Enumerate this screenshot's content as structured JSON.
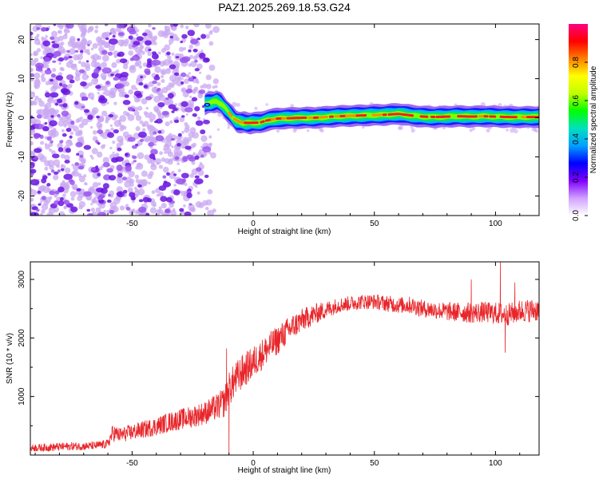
{
  "page_title": "PAZ1.2025.269.18.53.G24",
  "colors": {
    "snr_line": "#e8262a",
    "spectro_background_dot": "#c9a8f2",
    "spectro_strong_dot": "#6a14e0",
    "axis": "#000000"
  },
  "chart_data": [
    {
      "type": "heatmap",
      "title": "PAZ1.2025.269.18.53.G24",
      "xlabel": "Height of straight line (km)",
      "ylabel": "Frequency (Hz)",
      "xlim": [
        -92,
        118
      ],
      "ylim": [
        -25,
        24
      ],
      "xticks": [
        -50,
        0,
        50,
        100
      ],
      "yticks": [
        -20,
        -10,
        0,
        10,
        20
      ],
      "xtick_labels": [
        "-50",
        "0",
        "50",
        "100"
      ],
      "ytick_labels": [
        "-20",
        "-10",
        "0",
        "10",
        "20"
      ],
      "colorbar": {
        "label": "Normalized spectral amplitude",
        "range": [
          0,
          1
        ],
        "ticks": [
          "0.0",
          "0.2",
          "0.4",
          "0.6",
          "0.8"
        ],
        "colormap": [
          "#ffffff",
          "#d0a0ff",
          "#8000ff",
          "#0000ff",
          "#00a0ff",
          "#00e0c0",
          "#00ff00",
          "#c0ff00",
          "#ffff00",
          "#ff8000",
          "#ff0000",
          "#ff0080"
        ]
      },
      "noise_region_x": [
        -92,
        -15
      ],
      "ridge": {
        "x": [
          -20,
          -17,
          -15,
          -13,
          -11,
          -9,
          -7,
          -5,
          -3,
          0,
          3,
          6,
          10,
          15,
          20,
          25,
          30,
          35,
          40,
          45,
          50,
          55,
          60,
          65,
          70,
          75,
          80,
          85,
          90,
          95,
          100,
          105,
          110,
          118
        ],
        "y": [
          3.5,
          4,
          4.2,
          3.5,
          2,
          0.5,
          -0.8,
          -1.2,
          -1.3,
          -1.3,
          -1.2,
          -0.6,
          -0.2,
          -0.1,
          0,
          0,
          0.2,
          0.4,
          0.5,
          0.6,
          0.7,
          0.8,
          1.0,
          0.6,
          0.3,
          0.2,
          0.3,
          0.4,
          0.3,
          0.4,
          0.3,
          0.2,
          0.2,
          0.2
        ]
      }
    },
    {
      "type": "line",
      "xlabel": "Height of straight line (km)",
      "ylabel": "SNR (10 * v/v)",
      "xlim": [
        -92,
        118
      ],
      "ylim": [
        0,
        3300
      ],
      "xticks": [
        -50,
        0,
        50,
        100
      ],
      "yticks": [
        1000,
        2000,
        3000
      ],
      "xtick_labels": [
        "-50",
        "0",
        "50",
        "100"
      ],
      "ytick_labels": [
        "1000",
        "2000",
        "3000"
      ],
      "series": [
        {
          "x": [
            -92,
            -85,
            -80,
            -75,
            -70,
            -65,
            -60,
            -58,
            -55,
            -50,
            -45,
            -40,
            -35,
            -30,
            -25,
            -20,
            -15,
            -12,
            -10,
            -8,
            -5,
            0,
            5,
            10,
            15,
            20,
            25,
            30,
            35,
            40,
            45,
            50,
            55,
            60,
            65,
            70,
            75,
            80,
            85,
            90,
            95,
            100,
            105,
            110,
            118
          ],
          "values": [
            120,
            130,
            140,
            150,
            150,
            160,
            190,
            380,
            340,
            390,
            440,
            490,
            560,
            610,
            660,
            720,
            820,
            900,
            1120,
            1250,
            1400,
            1580,
            1780,
            1960,
            2150,
            2300,
            2400,
            2480,
            2560,
            2590,
            2620,
            2620,
            2590,
            2560,
            2560,
            2500,
            2480,
            2450,
            2440,
            2430,
            2440,
            2420,
            2400,
            2460,
            2480
          ],
          "noise_amplitude": [
            60,
            70,
            70,
            70,
            70,
            70,
            80,
            150,
            130,
            140,
            150,
            160,
            170,
            180,
            190,
            200,
            230,
            260,
            300,
            300,
            300,
            280,
            260,
            250,
            230,
            200,
            180,
            150,
            130,
            130,
            130,
            130,
            140,
            140,
            150,
            150,
            150,
            160,
            170,
            180,
            180,
            190,
            190,
            200,
            200
          ],
          "spikes": [
            [
              -11,
              1820
            ],
            [
              -10,
              20
            ],
            [
              90,
              3000
            ],
            [
              102,
              3300
            ],
            [
              104,
              1750
            ],
            [
              108,
              2950
            ]
          ]
        }
      ]
    }
  ]
}
